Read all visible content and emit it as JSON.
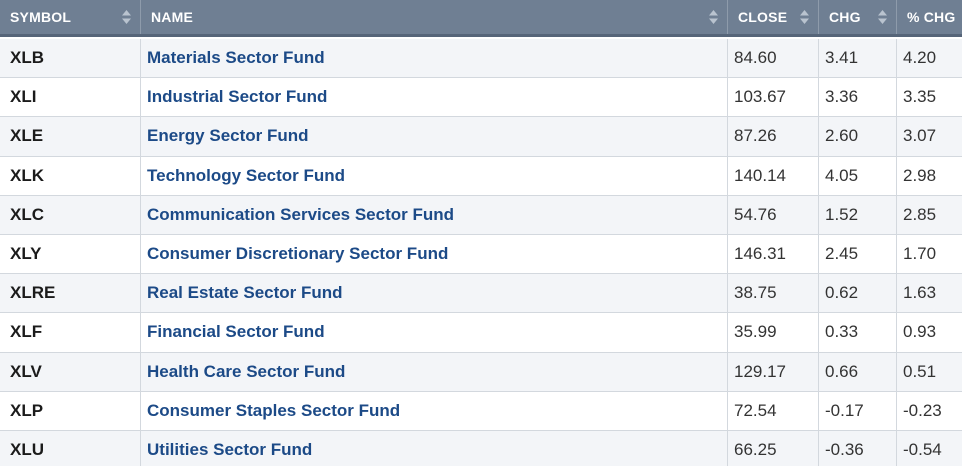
{
  "headers": {
    "symbol": "SYMBOL",
    "name": "NAME",
    "close": "CLOSE",
    "chg": "CHG",
    "pct_chg": "% CHG"
  },
  "icons": {
    "sort": "sort-arrows-icon"
  },
  "colors": {
    "header_bg": "#6f7f93",
    "link": "#1c4a87",
    "row_alt": "#f3f5f8"
  },
  "rows": [
    {
      "symbol": "XLB",
      "name": "Materials Sector Fund",
      "close": "84.60",
      "chg": "3.41",
      "pct_chg": "4.20"
    },
    {
      "symbol": "XLI",
      "name": "Industrial Sector Fund",
      "close": "103.67",
      "chg": "3.36",
      "pct_chg": "3.35"
    },
    {
      "symbol": "XLE",
      "name": "Energy Sector Fund",
      "close": "87.26",
      "chg": "2.60",
      "pct_chg": "3.07"
    },
    {
      "symbol": "XLK",
      "name": "Technology Sector Fund",
      "close": "140.14",
      "chg": "4.05",
      "pct_chg": "2.98"
    },
    {
      "symbol": "XLC",
      "name": "Communication Services Sector Fund",
      "close": "54.76",
      "chg": "1.52",
      "pct_chg": "2.85"
    },
    {
      "symbol": "XLY",
      "name": "Consumer Discretionary Sector Fund",
      "close": "146.31",
      "chg": "2.45",
      "pct_chg": "1.70"
    },
    {
      "symbol": "XLRE",
      "name": "Real Estate Sector Fund",
      "close": "38.75",
      "chg": "0.62",
      "pct_chg": "1.63"
    },
    {
      "symbol": "XLF",
      "name": "Financial Sector Fund",
      "close": "35.99",
      "chg": "0.33",
      "pct_chg": "0.93"
    },
    {
      "symbol": "XLV",
      "name": "Health Care Sector Fund",
      "close": "129.17",
      "chg": "0.66",
      "pct_chg": "0.51"
    },
    {
      "symbol": "XLP",
      "name": "Consumer Staples Sector Fund",
      "close": "72.54",
      "chg": "-0.17",
      "pct_chg": "-0.23"
    },
    {
      "symbol": "XLU",
      "name": "Utilities Sector Fund",
      "close": "66.25",
      "chg": "-0.36",
      "pct_chg": "-0.54"
    }
  ]
}
